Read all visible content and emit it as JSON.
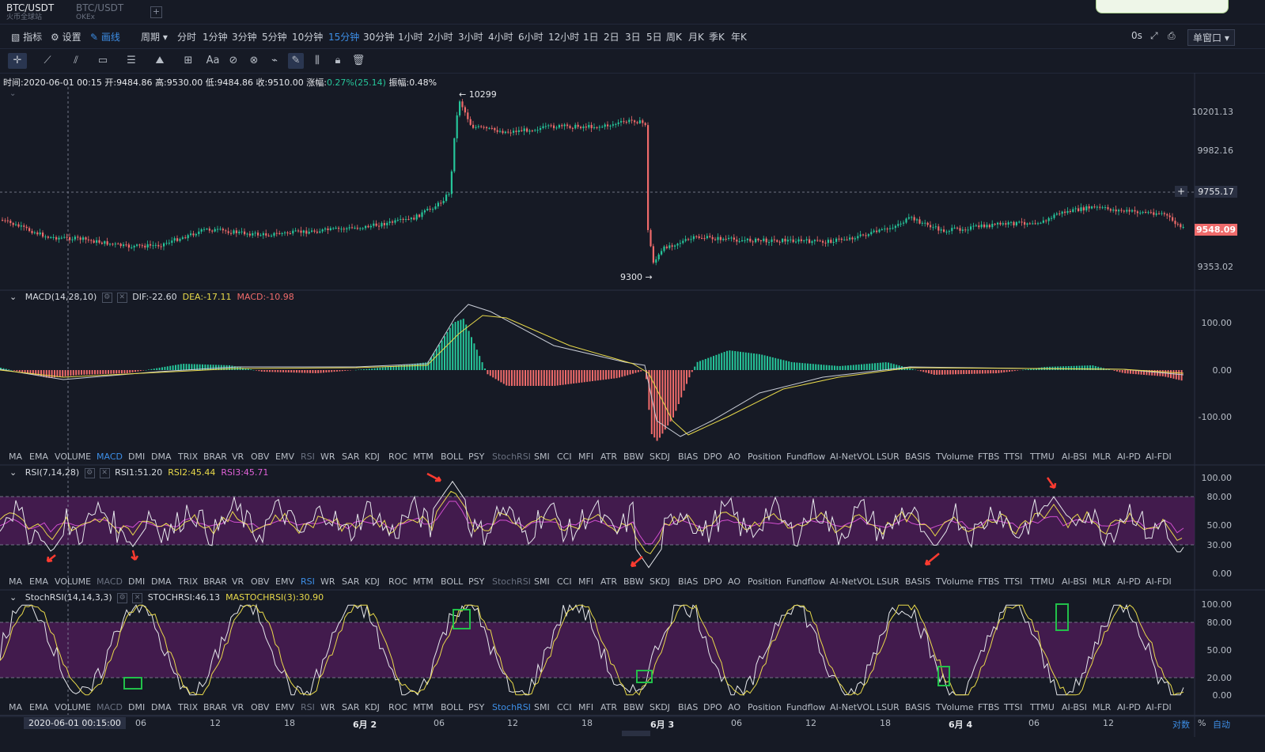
{
  "tabs": [
    {
      "title": "BTC/USDT",
      "subtitle": "火币全球站",
      "active": true
    },
    {
      "title": "BTC/USDT",
      "subtitle": "OKEx",
      "active": false
    }
  ],
  "toolbar": {
    "indicators_label": "指标",
    "settings_label": "设置",
    "draw_label": "画线",
    "period_label": "周期",
    "periods": [
      "分时",
      "1分钟",
      "3分钟",
      "5分钟",
      "10分钟",
      "15分钟",
      "30分钟",
      "1小时",
      "2小时",
      "3小时",
      "4小时",
      "6小时",
      "12小时",
      "1日",
      "2日",
      "3日",
      "5日",
      "周K",
      "月K",
      "季K",
      "年K"
    ],
    "active_period": "15分钟",
    "countdown": "0s",
    "layout_label": "单窗口"
  },
  "ohlc": {
    "time_label": "时间:",
    "time": "2020-06-01 00:15",
    "open_label": "开:",
    "open": "9484.86",
    "high_label": "高:",
    "high": "9530.00",
    "low_label": "低:",
    "low": "9484.86",
    "close_label": "收:",
    "close": "9510.00",
    "change_label": "涨幅:",
    "change": "0.27%(25.14)",
    "amp_label": "振幅:",
    "amp": "0.48%"
  },
  "main_chart": {
    "y_ticks": [
      "10201.13",
      "9982.16",
      "9755.17",
      "9548.09",
      "9353.02"
    ],
    "crosshair_price": "9755.17",
    "last_price": "9548.09",
    "high_marker": "10299",
    "low_marker": "9300",
    "colors": {
      "up": "#26c59a",
      "down": "#ef6b6b"
    }
  },
  "macd": {
    "name": "MACD(14,28,10)",
    "dif": "DIF:-22.60",
    "dea": "DEA:-17.11",
    "macd": "MACD:-10.98",
    "y_ticks": [
      "100.00",
      "0.00",
      "-100.00"
    ]
  },
  "rsi": {
    "name": "RSI(7,14,28)",
    "rsi1": "RSI1:51.20",
    "rsi2": "RSI2:45.44",
    "rsi3": "RSI3:45.71",
    "y_ticks": [
      "100.00",
      "80.00",
      "50.00",
      "30.00",
      "0.00"
    ]
  },
  "stochrsi": {
    "name": "StochRSI(14,14,3,3)",
    "stoch": "STOCHRSI:46.13",
    "ma": "MASTOCHRSI(3):30.90",
    "y_ticks": [
      "100.00",
      "80.00",
      "50.00",
      "20.00",
      "0.00"
    ]
  },
  "indicator_list": [
    "MA",
    "EMA",
    "VOLUME",
    "MACD",
    "DMI",
    "DMA",
    "TRIX",
    "BRAR",
    "VR",
    "OBV",
    "EMV",
    "RSI",
    "WR",
    "SAR",
    "KDJ",
    "ROC",
    "MTM",
    "BOLL",
    "PSY",
    "StochRSI",
    "SMI",
    "CCI",
    "MFI",
    "ATR",
    "BBW",
    "SKDJ",
    "BIAS",
    "DPO",
    "AO",
    "Position",
    "Fundflow",
    "AI-NetVOL",
    "LSUR",
    "BASIS",
    "TVolume",
    "FTBS",
    "TTSI",
    "TTMU",
    "AI-BSI",
    "MLR",
    "AI-PD",
    "AI-FDI"
  ],
  "x_axis": {
    "cursor_time": "2020-06-01 00:15:00",
    "labels": [
      "06",
      "12",
      "18",
      "6月 2",
      "06",
      "12",
      "18",
      "6月 3",
      "06",
      "12",
      "18",
      "6月 4",
      "06",
      "12"
    ],
    "log_label": "对数",
    "pct_label": "%",
    "auto_label": "自动"
  }
}
